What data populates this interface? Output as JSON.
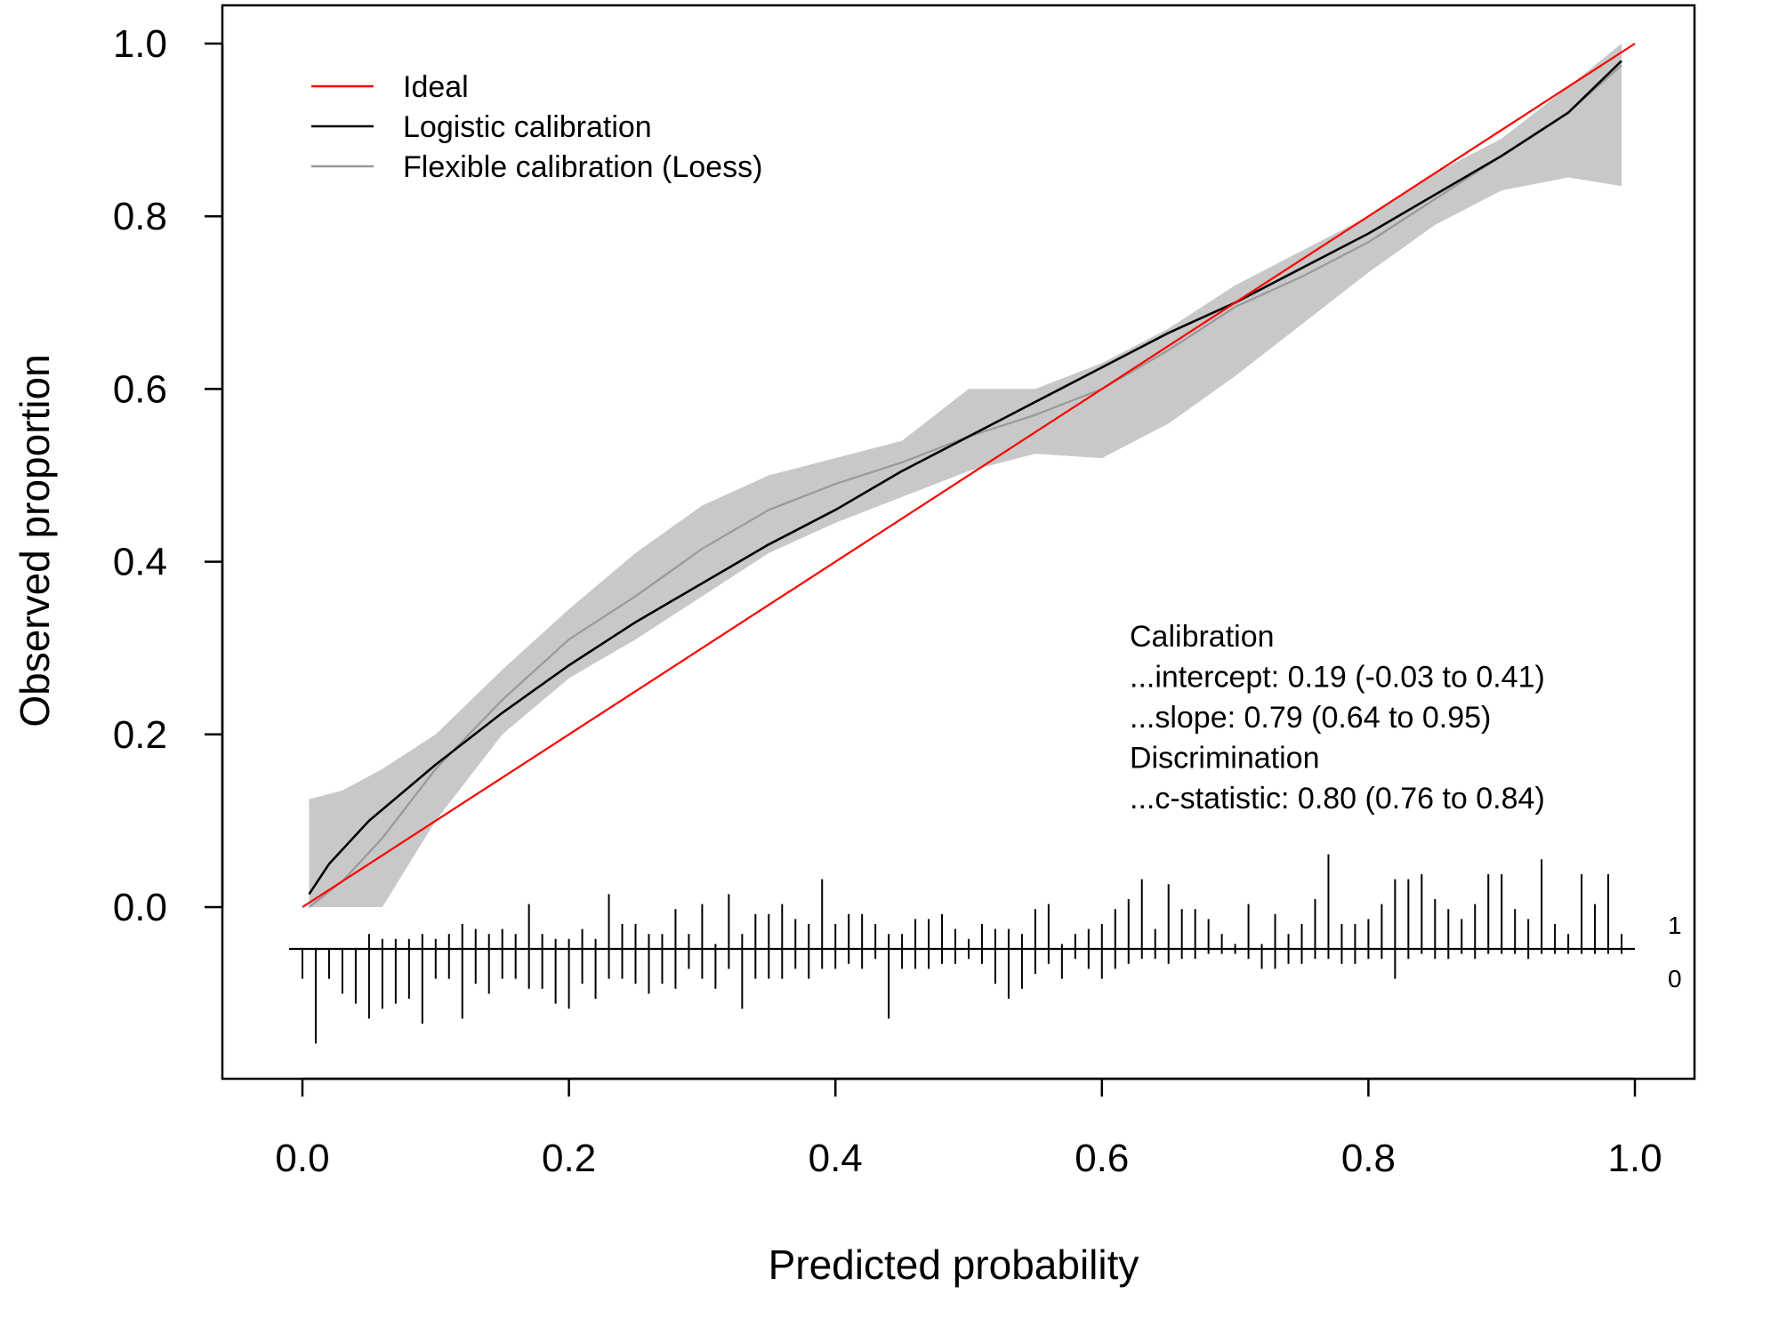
{
  "chart_data": {
    "type": "line",
    "title": "",
    "xlabel": "Predicted probability",
    "ylabel": "Observed proportion",
    "xlim": [
      0.0,
      1.0
    ],
    "ylim": [
      0.0,
      1.0
    ],
    "x_ticks": [
      "0.0",
      "0.2",
      "0.4",
      "0.6",
      "0.8",
      "1.0"
    ],
    "y_ticks": [
      "0.0",
      "0.2",
      "0.4",
      "0.6",
      "0.8",
      "1.0"
    ],
    "grid": false,
    "legend": {
      "position": "top-left",
      "entries": [
        {
          "label": "Ideal",
          "color": "#ff0000"
        },
        {
          "label": "Logistic calibration",
          "color": "#000000"
        },
        {
          "label": "Flexible calibration (Loess)",
          "color": "#999999"
        }
      ]
    },
    "series": [
      {
        "name": "Ideal",
        "color": "#ff0000",
        "x": [
          0.0,
          1.0
        ],
        "y": [
          0.0,
          1.0
        ]
      },
      {
        "name": "Logistic calibration",
        "color": "#000000",
        "x": [
          0.005,
          0.02,
          0.05,
          0.1,
          0.15,
          0.2,
          0.25,
          0.3,
          0.35,
          0.4,
          0.45,
          0.5,
          0.55,
          0.6,
          0.65,
          0.7,
          0.75,
          0.8,
          0.85,
          0.9,
          0.95,
          0.99
        ],
        "y": [
          0.015,
          0.05,
          0.1,
          0.165,
          0.225,
          0.28,
          0.33,
          0.375,
          0.42,
          0.46,
          0.505,
          0.545,
          0.585,
          0.625,
          0.665,
          0.7,
          0.74,
          0.78,
          0.825,
          0.87,
          0.92,
          0.98
        ]
      },
      {
        "name": "Flexible calibration (Loess)",
        "color": "#999999",
        "x": [
          0.005,
          0.03,
          0.06,
          0.1,
          0.15,
          0.2,
          0.25,
          0.3,
          0.35,
          0.4,
          0.45,
          0.5,
          0.55,
          0.6,
          0.65,
          0.7,
          0.75,
          0.8,
          0.85,
          0.9,
          0.95,
          0.99
        ],
        "y": [
          0.0,
          0.03,
          0.08,
          0.16,
          0.24,
          0.31,
          0.36,
          0.415,
          0.46,
          0.49,
          0.515,
          0.545,
          0.57,
          0.6,
          0.645,
          0.695,
          0.73,
          0.77,
          0.82,
          0.87,
          0.92,
          0.975
        ]
      }
    ],
    "confidence_band": {
      "series": "Flexible calibration (Loess)",
      "color": "#c8c8c8",
      "x": [
        0.005,
        0.03,
        0.06,
        0.1,
        0.15,
        0.2,
        0.25,
        0.3,
        0.35,
        0.4,
        0.45,
        0.5,
        0.55,
        0.6,
        0.65,
        0.7,
        0.75,
        0.8,
        0.85,
        0.9,
        0.95,
        0.99
      ],
      "upper": [
        0.125,
        0.135,
        0.16,
        0.2,
        0.275,
        0.345,
        0.41,
        0.465,
        0.5,
        0.52,
        0.54,
        0.6,
        0.6,
        0.63,
        0.67,
        0.72,
        0.76,
        0.8,
        0.85,
        0.89,
        0.95,
        1.0
      ],
      "lower": [
        0.0,
        0.0,
        0.0,
        0.1,
        0.2,
        0.265,
        0.31,
        0.36,
        0.41,
        0.445,
        0.475,
        0.505,
        0.525,
        0.52,
        0.56,
        0.615,
        0.675,
        0.735,
        0.79,
        0.83,
        0.845,
        0.835
      ]
    },
    "annotation": [
      "Calibration",
      "...intercept: 0.19 (-0.03 to 0.41)",
      "...slope: 0.79 (0.64 to 0.95)",
      "Discrimination",
      "...c-statistic: 0.80 (0.76 to 0.84)"
    ],
    "spike_histogram": {
      "labels": {
        "event": "1",
        "non_event": "0"
      },
      "x": [
        0.0,
        0.01,
        0.02,
        0.03,
        0.04,
        0.05,
        0.06,
        0.07,
        0.08,
        0.09,
        0.1,
        0.11,
        0.12,
        0.13,
        0.14,
        0.15,
        0.16,
        0.17,
        0.18,
        0.19,
        0.2,
        0.21,
        0.22,
        0.23,
        0.24,
        0.25,
        0.26,
        0.27,
        0.28,
        0.29,
        0.3,
        0.31,
        0.32,
        0.33,
        0.34,
        0.35,
        0.36,
        0.37,
        0.38,
        0.39,
        0.4,
        0.41,
        0.42,
        0.43,
        0.44,
        0.45,
        0.46,
        0.47,
        0.48,
        0.49,
        0.5,
        0.51,
        0.52,
        0.53,
        0.54,
        0.55,
        0.56,
        0.57,
        0.58,
        0.59,
        0.6,
        0.61,
        0.62,
        0.63,
        0.64,
        0.65,
        0.66,
        0.67,
        0.68,
        0.69,
        0.7,
        0.71,
        0.72,
        0.73,
        0.74,
        0.75,
        0.76,
        0.77,
        0.78,
        0.79,
        0.8,
        0.81,
        0.82,
        0.83,
        0.84,
        0.85,
        0.86,
        0.87,
        0.88,
        0.89,
        0.9,
        0.91,
        0.92,
        0.93,
        0.94,
        0.95,
        0.96,
        0.97,
        0.98,
        0.99
      ],
      "ones": [
        0,
        0,
        0,
        0,
        0,
        0.3,
        0.2,
        0.2,
        0.2,
        0.3,
        0.2,
        0.3,
        0.5,
        0.4,
        0.3,
        0.4,
        0.3,
        0.9,
        0.3,
        0.2,
        0.2,
        0.4,
        0.2,
        1.1,
        0.5,
        0.5,
        0.3,
        0.3,
        0.8,
        0.3,
        0.9,
        0.1,
        1.1,
        0.3,
        0.7,
        0.7,
        0.9,
        0.6,
        0.5,
        1.4,
        0.5,
        0.7,
        0.7,
        0.5,
        0.3,
        0.3,
        0.6,
        0.6,
        0.7,
        0.4,
        0.2,
        0.5,
        0.4,
        0.4,
        0.3,
        0.8,
        0.9,
        0.1,
        0.3,
        0.4,
        0.5,
        0.8,
        1.0,
        1.4,
        0.4,
        1.3,
        0.8,
        0.8,
        0.6,
        0.3,
        0.1,
        0.9,
        0.1,
        0.7,
        0.3,
        0.5,
        1.0,
        1.9,
        0.5,
        0.5,
        0.6,
        0.9,
        1.4,
        1.4,
        1.5,
        1.0,
        0.8,
        0.6,
        0.9,
        1.5,
        1.5,
        0.8,
        0.6,
        1.8,
        0.5,
        0.3,
        1.5,
        0.9,
        1.5,
        0.3
      ],
      "zeros": [
        0.6,
        1.9,
        0.6,
        0.9,
        1.1,
        1.4,
        1.2,
        1.1,
        1.0,
        1.5,
        0.6,
        0.6,
        1.4,
        0.7,
        0.9,
        0.6,
        0.6,
        0.8,
        0.8,
        1.1,
        1.2,
        0.7,
        1.0,
        0.6,
        0.6,
        0.7,
        0.9,
        0.7,
        0.8,
        0.4,
        0.6,
        0.8,
        0.4,
        1.2,
        0.6,
        0.6,
        0.6,
        0.4,
        0.6,
        0.4,
        0.4,
        0.3,
        0.4,
        0.2,
        1.4,
        0.4,
        0.4,
        0.4,
        0.3,
        0.3,
        0.2,
        0.3,
        0.7,
        1.0,
        0.8,
        0.5,
        0.3,
        0.6,
        0.2,
        0.4,
        0.6,
        0.4,
        0.3,
        0.2,
        0.2,
        0.3,
        0.2,
        0.2,
        0.1,
        0.1,
        0.1,
        0.2,
        0.4,
        0.4,
        0.3,
        0.3,
        0.2,
        0.2,
        0.3,
        0.3,
        0.2,
        0.2,
        0.6,
        0.2,
        0.1,
        0.2,
        0.2,
        0.1,
        0.2,
        0.1,
        0.1,
        0.1,
        0.2,
        0.1,
        0.1,
        0.1,
        0.1,
        0.1,
        0.1,
        0.1
      ]
    }
  }
}
